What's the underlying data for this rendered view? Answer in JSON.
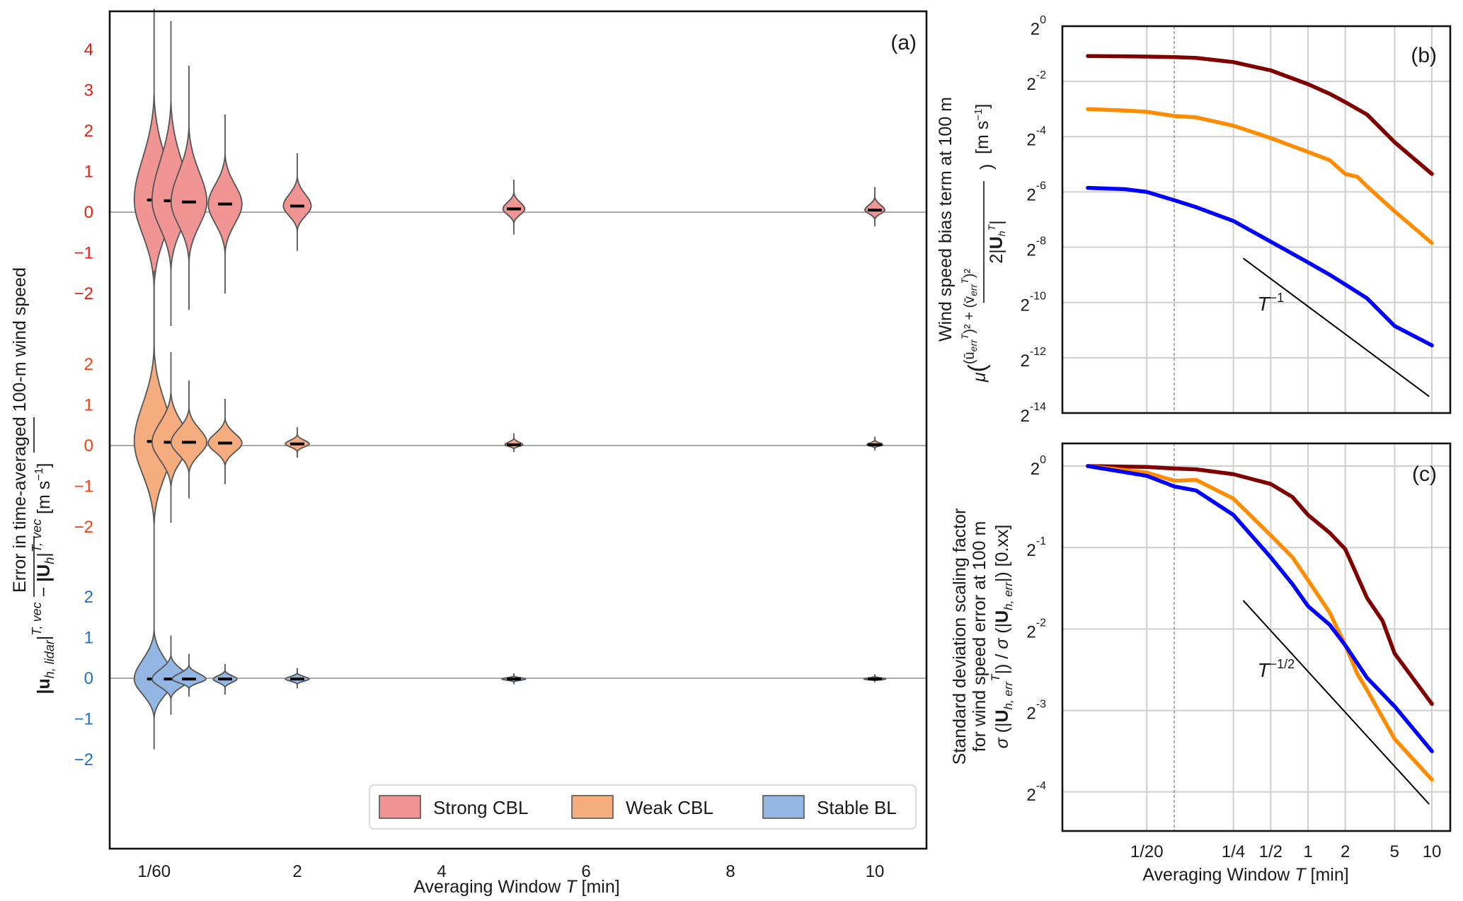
{
  "chart_data": [
    {
      "id": "a",
      "type": "violin",
      "panel_label": "(a)",
      "xlabel": "Averaging Window T [min]",
      "xlabel_parts": [
        "Averaging Window ",
        "T",
        " [min]"
      ],
      "ylabel_line1": "Error in time-averaged 100-m wind speed",
      "ylabel_line2": "|u_h,lidar|^(T,vec) − |U_h|^(T,vec) [m s⁻¹]",
      "xlim": [
        0,
        10.5
      ],
      "x_ticks": [
        {
          "value": 0.0167,
          "label": "1/60"
        },
        {
          "value": 2,
          "label": "2"
        },
        {
          "value": 4,
          "label": "4"
        },
        {
          "value": 6,
          "label": "6"
        },
        {
          "value": 8,
          "label": "8"
        },
        {
          "value": 10,
          "label": "10"
        }
      ],
      "legend": {
        "position": "lower-right",
        "entries": [
          "Strong CBL",
          "Weak CBL",
          "Stable BL"
        ]
      },
      "series": [
        {
          "name": "Strong CBL",
          "fill": "#f09494",
          "tick_color": "#e02010",
          "y_ticks": [
            4,
            3,
            2,
            1,
            0,
            -1,
            -2
          ],
          "violins": [
            {
              "T": 0.0167,
              "median": 0.3,
              "min": -3.6,
              "max": 5.0,
              "width": 1.0
            },
            {
              "T": 0.25,
              "median": 0.28,
              "min": -2.8,
              "max": 4.7,
              "width": 0.95
            },
            {
              "T": 0.5,
              "median": 0.25,
              "min": -2.4,
              "max": 3.6,
              "width": 0.9
            },
            {
              "T": 1,
              "median": 0.2,
              "min": -2.0,
              "max": 2.4,
              "width": 0.85
            },
            {
              "T": 2,
              "median": 0.15,
              "min": -0.95,
              "max": 1.45,
              "width": 0.7
            },
            {
              "T": 5,
              "median": 0.08,
              "min": -0.55,
              "max": 0.8,
              "width": 0.55
            },
            {
              "T": 10,
              "median": 0.05,
              "min": -0.35,
              "max": 0.62,
              "width": 0.5
            }
          ]
        },
        {
          "name": "Weak CBL",
          "fill": "#f5ad80",
          "tick_color": "#f04010",
          "y_ticks": [
            2,
            1,
            0,
            -1,
            -2
          ],
          "violins": [
            {
              "T": 0.0167,
              "median": 0.1,
              "min": -3.6,
              "max": 4.3,
              "width": 1.0
            },
            {
              "T": 0.25,
              "median": 0.08,
              "min": -1.9,
              "max": 2.3,
              "width": 0.95
            },
            {
              "T": 0.5,
              "median": 0.08,
              "min": -1.3,
              "max": 1.6,
              "width": 0.9
            },
            {
              "T": 1,
              "median": 0.06,
              "min": -0.95,
              "max": 1.15,
              "width": 0.85
            },
            {
              "T": 2,
              "median": 0.04,
              "min": -0.3,
              "max": 0.45,
              "width": 0.6
            },
            {
              "T": 5,
              "median": 0.02,
              "min": -0.16,
              "max": 0.3,
              "width": 0.45
            },
            {
              "T": 10,
              "median": 0.02,
              "min": -0.12,
              "max": 0.22,
              "width": 0.4
            }
          ]
        },
        {
          "name": "Stable BL",
          "fill": "#93b7e2",
          "tick_color": "#1f6fc0",
          "y_ticks": [
            2,
            1,
            0,
            -1,
            -2
          ],
          "violins": [
            {
              "T": 0.0167,
              "median": -0.02,
              "min": -1.75,
              "max": 2.15,
              "width": 1.0
            },
            {
              "T": 0.25,
              "median": -0.02,
              "min": -0.9,
              "max": 1.05,
              "width": 0.95
            },
            {
              "T": 0.5,
              "median": -0.02,
              "min": -0.45,
              "max": 0.6,
              "width": 0.85
            },
            {
              "T": 1,
              "median": -0.02,
              "min": -0.4,
              "max": 0.35,
              "width": 0.6
            },
            {
              "T": 2,
              "median": -0.02,
              "min": -0.25,
              "max": 0.25,
              "width": 0.6
            },
            {
              "T": 5,
              "median": -0.02,
              "min": -0.15,
              "max": 0.12,
              "width": 0.6
            },
            {
              "T": 10,
              "median": -0.02,
              "min": -0.1,
              "max": 0.1,
              "width": 0.55
            }
          ]
        }
      ]
    },
    {
      "id": "b",
      "type": "line",
      "panel_label": "(b)",
      "xscale": "log2",
      "yscale": "log2",
      "ylabel_line1": "Wind speed bias term at 100 m",
      "ylabel_line2": "μ( ((ū_err^T)² + (v̄_err^T)²) / (2|Ū_h^T|) ) [m s⁻¹]",
      "xlabel": "",
      "ylim_log2": [
        -14,
        0
      ],
      "y_ticks_log2": [
        0,
        -2,
        -4,
        -6,
        -8,
        -10,
        -12,
        -14
      ],
      "x_ticks": [
        {
          "value": 0.05,
          "label": "1/20"
        },
        {
          "value": 0.25,
          "label": "1/4"
        },
        {
          "value": 0.5,
          "label": "1/2"
        },
        {
          "value": 1,
          "label": "1"
        },
        {
          "value": 2,
          "label": "2"
        },
        {
          "value": 5,
          "label": "5"
        },
        {
          "value": 10,
          "label": "10"
        }
      ],
      "marker_line_T": 0.0833,
      "grid": true,
      "series": [
        {
          "name": "Strong CBL",
          "color": "#800000",
          "T": [
            0.0167,
            0.0333,
            0.05,
            0.0833,
            0.125,
            0.25,
            0.5,
            1,
            1.5,
            2,
            3,
            5,
            10
          ],
          "log2_value": [
            -1.08,
            -1.09,
            -1.1,
            -1.12,
            -1.15,
            -1.3,
            -1.6,
            -2.1,
            -2.45,
            -2.75,
            -3.2,
            -4.2,
            -5.35
          ]
        },
        {
          "name": "Weak CBL",
          "color": "#ff8c00",
          "T": [
            0.0167,
            0.0333,
            0.05,
            0.0833,
            0.125,
            0.25,
            0.5,
            1,
            1.5,
            2,
            2.5,
            3,
            5,
            10
          ],
          "log2_value": [
            -3.0,
            -3.05,
            -3.1,
            -3.25,
            -3.3,
            -3.6,
            -4.05,
            -4.55,
            -4.85,
            -5.35,
            -5.45,
            -5.8,
            -6.7,
            -7.85
          ]
        },
        {
          "name": "Stable BL",
          "color": "#0000ff",
          "T": [
            0.0167,
            0.0333,
            0.05,
            0.0833,
            0.125,
            0.25,
            0.5,
            1,
            1.5,
            2,
            3,
            5,
            10
          ],
          "log2_value": [
            -5.85,
            -5.9,
            -6.0,
            -6.3,
            -6.55,
            -7.05,
            -7.8,
            -8.55,
            -9.0,
            -9.35,
            -9.85,
            -10.85,
            -11.55
          ]
        }
      ],
      "reference": {
        "label": "T⁻¹",
        "label_base": "T",
        "label_exp": "−1",
        "slope": -1,
        "T": [
          0.3,
          9.5
        ],
        "log2_value": [
          -8.4,
          -13.4
        ]
      }
    },
    {
      "id": "c",
      "type": "line",
      "panel_label": "(c)",
      "xscale": "log2",
      "yscale": "log2",
      "ylabel_line1": "Standard deviation scaling factor",
      "ylabel_line2": "for wind speed error at 100 m",
      "ylabel_line3": "σ (|Ū_h,err^T|) / σ (|U_h,err|) [0.xx]",
      "xlabel": "Averaging Window T [min]",
      "xlabel_parts": [
        "Averaging Window ",
        "T",
        " [min]"
      ],
      "ylim_log2": [
        -4.6,
        0.2
      ],
      "y_ticks_log2": [
        0,
        -1,
        -2,
        -3,
        -4
      ],
      "x_ticks": [
        {
          "value": 0.05,
          "label": "1/20"
        },
        {
          "value": 0.25,
          "label": "1/4"
        },
        {
          "value": 0.5,
          "label": "1/2"
        },
        {
          "value": 1,
          "label": "1"
        },
        {
          "value": 2,
          "label": "2"
        },
        {
          "value": 5,
          "label": "5"
        },
        {
          "value": 10,
          "label": "10"
        }
      ],
      "marker_line_T": 0.0833,
      "grid": true,
      "series": [
        {
          "name": "Strong CBL",
          "color": "#800000",
          "T": [
            0.0167,
            0.05,
            0.0833,
            0.125,
            0.25,
            0.5,
            0.75,
            1,
            1.5,
            2,
            3,
            4,
            5,
            10
          ],
          "log2_value": [
            0,
            -0.01,
            -0.03,
            -0.04,
            -0.1,
            -0.22,
            -0.38,
            -0.6,
            -0.82,
            -1.02,
            -1.62,
            -1.9,
            -2.3,
            -2.92
          ]
        },
        {
          "name": "Weak CBL",
          "color": "#ff8c00",
          "T": [
            0.0167,
            0.05,
            0.0833,
            0.125,
            0.25,
            0.5,
            0.75,
            1,
            1.5,
            2,
            2.5,
            3,
            5,
            10
          ],
          "log2_value": [
            0,
            -0.08,
            -0.18,
            -0.17,
            -0.4,
            -0.85,
            -1.12,
            -1.4,
            -1.8,
            -2.2,
            -2.55,
            -2.75,
            -3.35,
            -3.85
          ]
        },
        {
          "name": "Stable BL",
          "color": "#0000ff",
          "T": [
            0.0167,
            0.05,
            0.0833,
            0.125,
            0.25,
            0.5,
            0.75,
            1,
            1.5,
            2,
            3,
            5,
            10
          ],
          "log2_value": [
            0,
            -0.12,
            -0.25,
            -0.3,
            -0.6,
            -1.12,
            -1.45,
            -1.72,
            -1.95,
            -2.2,
            -2.6,
            -2.95,
            -3.5
          ]
        }
      ],
      "reference": {
        "label": "T⁻¹ᐟ²",
        "label_base": "T",
        "label_exp": "−1/2",
        "slope": -0.5,
        "T": [
          0.3,
          9.5
        ],
        "log2_value": [
          -1.65,
          -4.15
        ]
      }
    }
  ]
}
